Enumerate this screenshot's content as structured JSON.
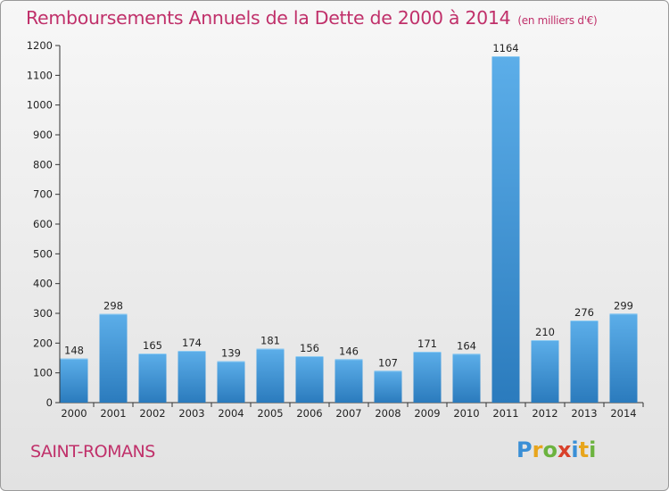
{
  "title": "Remboursements Annuels de la Dette de 2000 à 2014",
  "unit": "(en milliers d'€)",
  "commune": "SAINT-ROMANS",
  "logo": "Proxiti",
  "colors": {
    "bar_light": "#5aa9e6",
    "bar_dark": "#2e7fc2",
    "title": "#c0306a",
    "axis": "#222222"
  },
  "chart_data": {
    "type": "bar",
    "title": "Remboursements Annuels de la Dette de 2000 à 2014",
    "categories": [
      "2000",
      "2001",
      "2002",
      "2003",
      "2004",
      "2005",
      "2006",
      "2007",
      "2008",
      "2009",
      "2010",
      "2011",
      "2012",
      "2013",
      "2014"
    ],
    "values": [
      148,
      298,
      165,
      174,
      139,
      181,
      156,
      146,
      107,
      171,
      164,
      1164,
      210,
      276,
      299
    ],
    "ylim": [
      0,
      1200
    ],
    "yticks": [
      0,
      100,
      200,
      300,
      400,
      500,
      600,
      700,
      800,
      900,
      1000,
      1100,
      1200
    ],
    "grid": false,
    "data_labels": true
  }
}
